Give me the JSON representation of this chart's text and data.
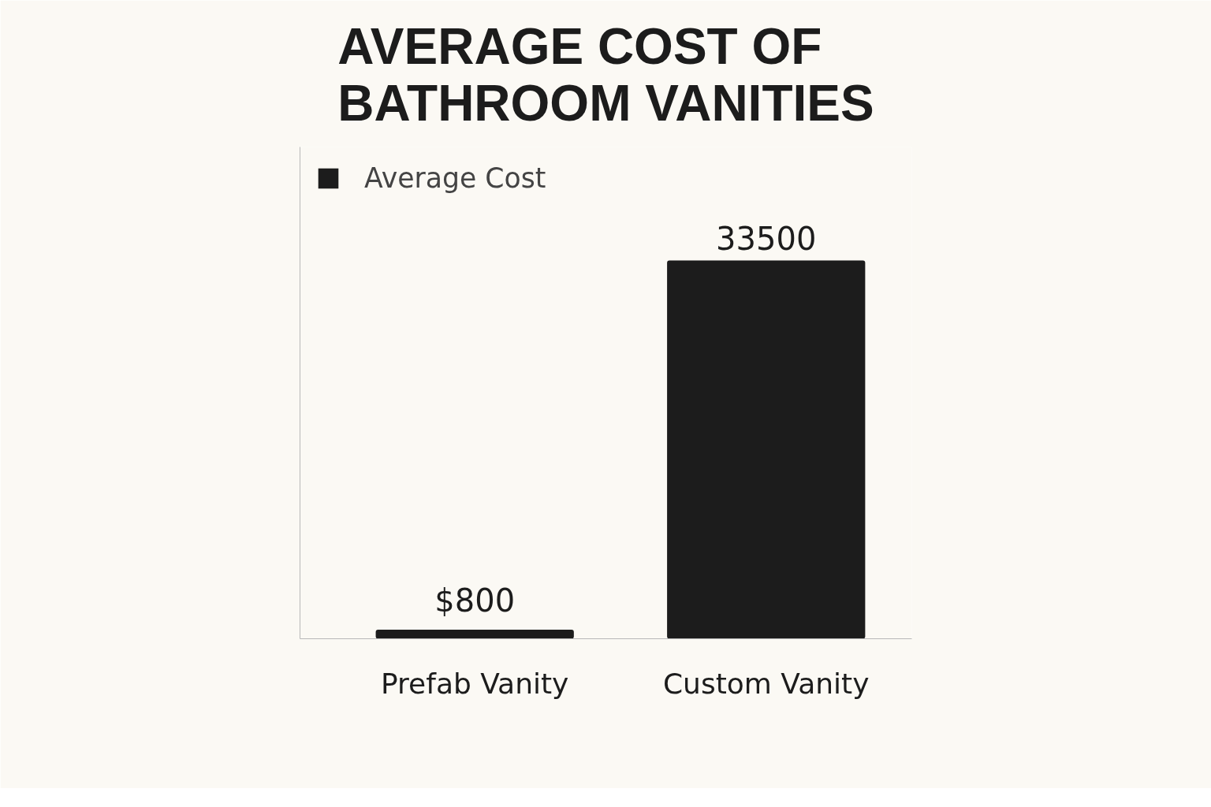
{
  "chart_data": {
    "type": "bar",
    "title": "AVERAGE COST OF BATHROOM VANITIES",
    "categories": [
      "Prefab Vanity",
      "Custom Vanity"
    ],
    "series": [
      {
        "name": "Average Cost",
        "color": "#1c1c1c",
        "values": [
          800,
          33500
        ],
        "value_labels": [
          "$800",
          "33500"
        ]
      }
    ],
    "legend": "top left",
    "grid": false,
    "tick_labels": "x"
  }
}
